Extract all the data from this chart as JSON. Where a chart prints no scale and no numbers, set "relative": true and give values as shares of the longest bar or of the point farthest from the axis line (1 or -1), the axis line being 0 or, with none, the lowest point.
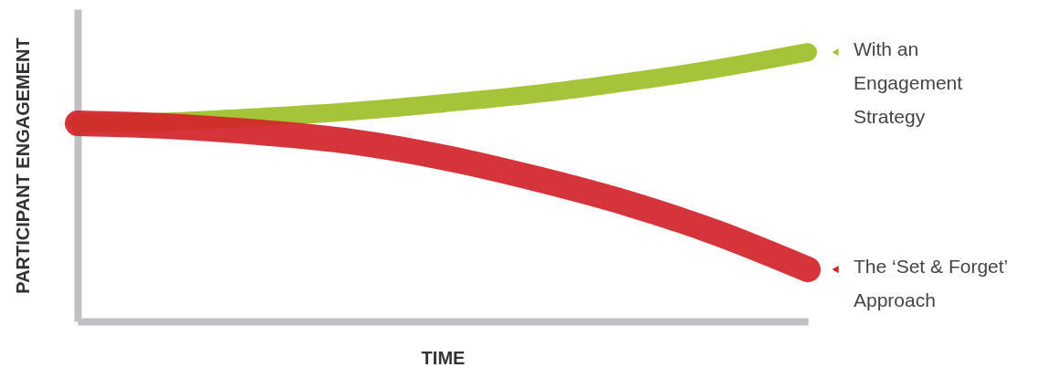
{
  "chart_data": {
    "type": "line",
    "relative": true,
    "xlabel": "TIME",
    "ylabel": "PARTICIPANT ENGAGEMENT",
    "categories": [
      null,
      null,
      null,
      null,
      null,
      null,
      null,
      null,
      null
    ],
    "series": [
      {
        "name": "With an Engagement Strategy",
        "color": "#a5c43a",
        "values": [
          0.736,
          0.742,
          0.759,
          0.78,
          0.81,
          0.844,
          0.888,
          0.939,
          1
        ]
      },
      {
        "name": "The ‘Set & Forget’ Approach",
        "color": "#d2232a",
        "values": [
          0.736,
          0.725,
          0.702,
          0.668,
          0.61,
          0.532,
          0.441,
          0.329,
          0.193
        ]
      }
    ],
    "legend": "right",
    "grid": false,
    "marker": "none",
    "line_style": "solid"
  }
}
